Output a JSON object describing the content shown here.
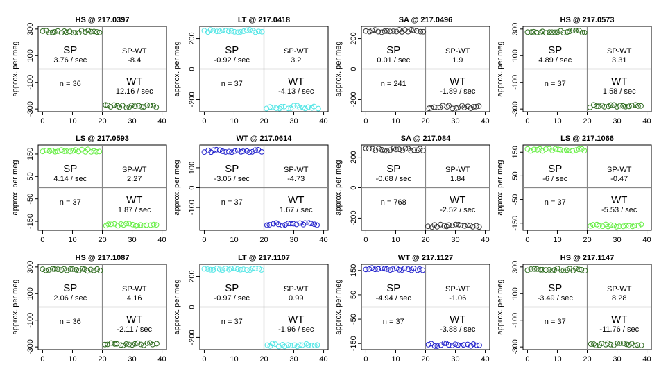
{
  "figure": {
    "x_axis_label": "",
    "y_axis_label": "approx. per meg",
    "x_ticks": [
      0,
      10,
      20,
      30,
      40
    ],
    "sp_label": "SP",
    "wt_label": "WT",
    "sp_wt_label": "SP-WT"
  },
  "chart_data": [
    {
      "type": "scatter",
      "title": "HS @ 217.0397",
      "color": "#2e6b1f",
      "ylim": [
        -320,
        320
      ],
      "yticks": [
        -300,
        -100,
        100,
        300
      ],
      "sp_level": 280,
      "wt_level": -280,
      "sp_rate": "3.76 / sec",
      "wt_rate": "12.16 / sec",
      "sp_wt": "-8.4",
      "n": "n = 36"
    },
    {
      "type": "scatter",
      "title": "LT @ 217.0418",
      "color": "#55e6e6",
      "ylim": [
        -280,
        280
      ],
      "yticks": [
        -200,
        0,
        200
      ],
      "sp_level": 250,
      "wt_level": -250,
      "sp_rate": "-0.92 / sec",
      "wt_rate": "-4.13 / sec",
      "sp_wt": "3.2",
      "n": "n = 37"
    },
    {
      "type": "scatter",
      "title": "SA @ 217.0496",
      "color": "#333333",
      "ylim": [
        -280,
        280
      ],
      "yticks": [
        -200,
        0,
        200
      ],
      "sp_level": 250,
      "wt_level": -250,
      "sp_rate": "0.01 / sec",
      "wt_rate": "-1.89 / sec",
      "sp_wt": "1.9",
      "n": "n = 241"
    },
    {
      "type": "scatter",
      "title": "HS @ 217.0573",
      "color": "#2e6b1f",
      "ylim": [
        -320,
        320
      ],
      "yticks": [
        -300,
        -100,
        100,
        300
      ],
      "sp_level": 280,
      "wt_level": -280,
      "sp_rate": "4.89 / sec",
      "wt_rate": "1.58 / sec",
      "sp_wt": "3.31",
      "n": "n = 37"
    },
    {
      "type": "scatter",
      "title": "LS @ 217.0593",
      "color": "#66ee44",
      "ylim": [
        -190,
        190
      ],
      "yticks": [
        -150,
        -50,
        50,
        150
      ],
      "sp_level": 165,
      "wt_level": -165,
      "sp_rate": "4.14 / sec",
      "wt_rate": "1.87 / sec",
      "sp_wt": "2.27",
      "n": "n = 37"
    },
    {
      "type": "scatter",
      "title": "WT @ 217.0614",
      "color": "#2222cc",
      "ylim": [
        -215,
        215
      ],
      "yticks": [
        -100,
        0,
        100
      ],
      "sp_level": 185,
      "wt_level": -185,
      "sp_rate": "-3.05 / sec",
      "wt_rate": "1.67 / sec",
      "sp_wt": "-4.73",
      "n": "n = 37"
    },
    {
      "type": "scatter",
      "title": "SA @ 217.084",
      "color": "#333333",
      "ylim": [
        -280,
        280
      ],
      "yticks": [
        -200,
        0,
        200
      ],
      "sp_level": 250,
      "wt_level": -250,
      "sp_rate": "-0.68 / sec",
      "wt_rate": "-2.52 / sec",
      "sp_wt": "1.84",
      "n": "n = 768"
    },
    {
      "type": "scatter",
      "title": "LS @ 217.1066",
      "color": "#66ee44",
      "ylim": [
        -180,
        180
      ],
      "yticks": [
        -150,
        -50,
        50,
        150
      ],
      "sp_level": 160,
      "wt_level": -160,
      "sp_rate": "-6 / sec",
      "wt_rate": "-5.53 / sec",
      "sp_wt": "-0.47",
      "n": "n = 37"
    },
    {
      "type": "scatter",
      "title": "HS @ 217.1087",
      "color": "#2e6b1f",
      "ylim": [
        -320,
        320
      ],
      "yticks": [
        -300,
        -100,
        100,
        300
      ],
      "sp_level": 280,
      "wt_level": -280,
      "sp_rate": "2.06 / sec",
      "wt_rate": "-2.11 / sec",
      "sp_wt": "4.16",
      "n": "n = 36"
    },
    {
      "type": "scatter",
      "title": "LT @ 217.1107",
      "color": "#55e6e6",
      "ylim": [
        -280,
        280
      ],
      "yticks": [
        -200,
        0,
        200
      ],
      "sp_level": 250,
      "wt_level": -250,
      "sp_rate": "-0.97 / sec",
      "wt_rate": "-1.96 / sec",
      "sp_wt": "0.99",
      "n": "n = 37"
    },
    {
      "type": "scatter",
      "title": "WT @ 217.1127",
      "color": "#2222cc",
      "ylim": [
        -175,
        175
      ],
      "yticks": [
        -150,
        -50,
        50,
        150
      ],
      "sp_level": 155,
      "wt_level": -155,
      "sp_rate": "-4.94 / sec",
      "wt_rate": "-3.88 / sec",
      "sp_wt": "-1.06",
      "n": "n = 37"
    },
    {
      "type": "scatter",
      "title": "HS @ 217.1147",
      "color": "#2e6b1f",
      "ylim": [
        -320,
        320
      ],
      "yticks": [
        -300,
        -100,
        100,
        300
      ],
      "sp_level": 280,
      "wt_level": -280,
      "sp_rate": "-3.49 / sec",
      "wt_rate": "-11.76 / sec",
      "sp_wt": "8.28",
      "n": "n = 37"
    }
  ]
}
